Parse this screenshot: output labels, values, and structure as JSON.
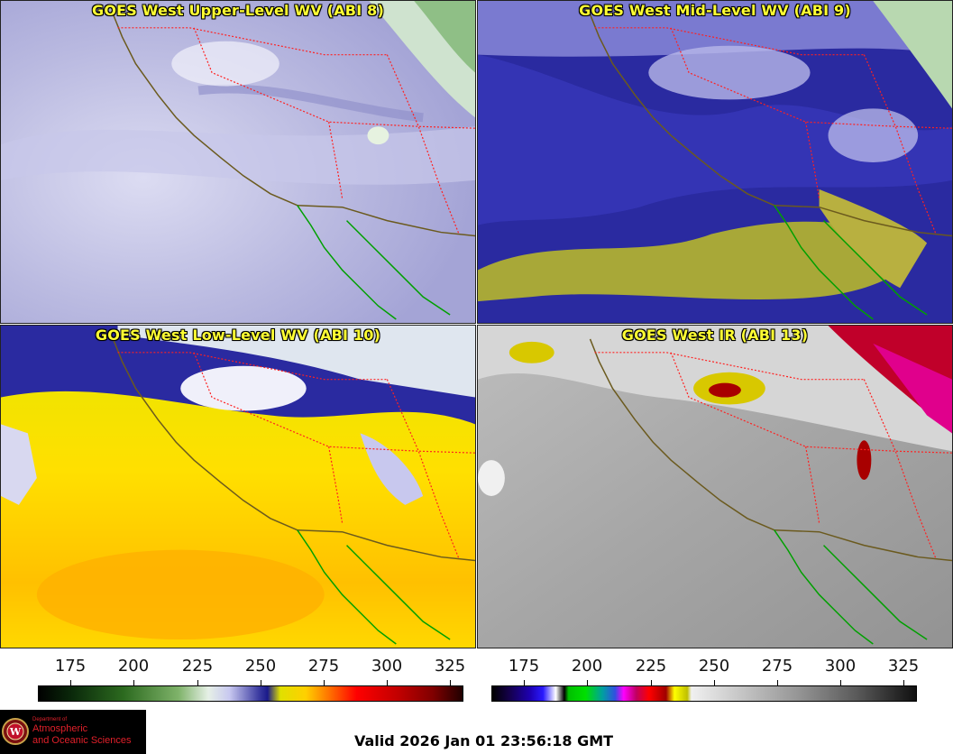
{
  "panels": [
    {
      "title": "GOES West Upper-Level WV (ABI 8)"
    },
    {
      "title": "GOES West Mid-Level WV (ABI 9)"
    },
    {
      "title": "GOES West Low-Level WV (ABI 10)"
    },
    {
      "title": "GOES West IR (ABI 13)"
    }
  ],
  "colorbars": {
    "wv": {
      "ticks": [
        "175",
        "200",
        "225",
        "250",
        "275",
        "300",
        "325"
      ]
    },
    "ir": {
      "ticks": [
        "175",
        "200",
        "225",
        "250",
        "275",
        "300",
        "325"
      ]
    }
  },
  "logo": {
    "line1": "Department of",
    "line2": "Atmospheric",
    "line3": "and Oceanic Sciences",
    "emblem_letter": "W"
  },
  "valid_time": "Valid 2026 Jan 01 23:56:18 GMT",
  "colors": {
    "title_text": "#ffff33",
    "state_border": "#ff2020",
    "coastline": "#6b5a1e",
    "mexico_coast": "#00a000",
    "logo_text": "#e0202a"
  }
}
